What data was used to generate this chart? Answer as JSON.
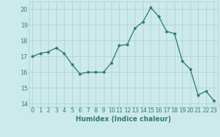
{
  "x": [
    0,
    1,
    2,
    3,
    4,
    5,
    6,
    7,
    8,
    9,
    10,
    11,
    12,
    13,
    14,
    15,
    16,
    17,
    18,
    19,
    20,
    21,
    22,
    23
  ],
  "y": [
    17.0,
    17.2,
    17.3,
    17.55,
    17.2,
    16.5,
    15.9,
    16.0,
    16.0,
    16.0,
    16.6,
    17.7,
    17.75,
    18.8,
    19.2,
    20.1,
    19.55,
    18.6,
    18.45,
    16.7,
    16.2,
    14.55,
    14.8,
    14.2
  ],
  "line_color": "#2e7d6e",
  "marker": "o",
  "marker_size": 2,
  "bg_color": "#cceaea",
  "grid_color": "#aacccc",
  "tick_color": "#2e7d6e",
  "xlabel": "Humidex (Indice chaleur)",
  "xlabel_fontsize": 7,
  "ylim": [
    13.8,
    20.5
  ],
  "xlim": [
    -0.5,
    23.5
  ],
  "yticks": [
    14,
    15,
    16,
    17,
    18,
    19,
    20
  ],
  "xticks": [
    0,
    1,
    2,
    3,
    4,
    5,
    6,
    7,
    8,
    9,
    10,
    11,
    12,
    13,
    14,
    15,
    16,
    17,
    18,
    19,
    20,
    21,
    22,
    23
  ],
  "tick_label_fontsize": 6,
  "line_width": 1.0
}
